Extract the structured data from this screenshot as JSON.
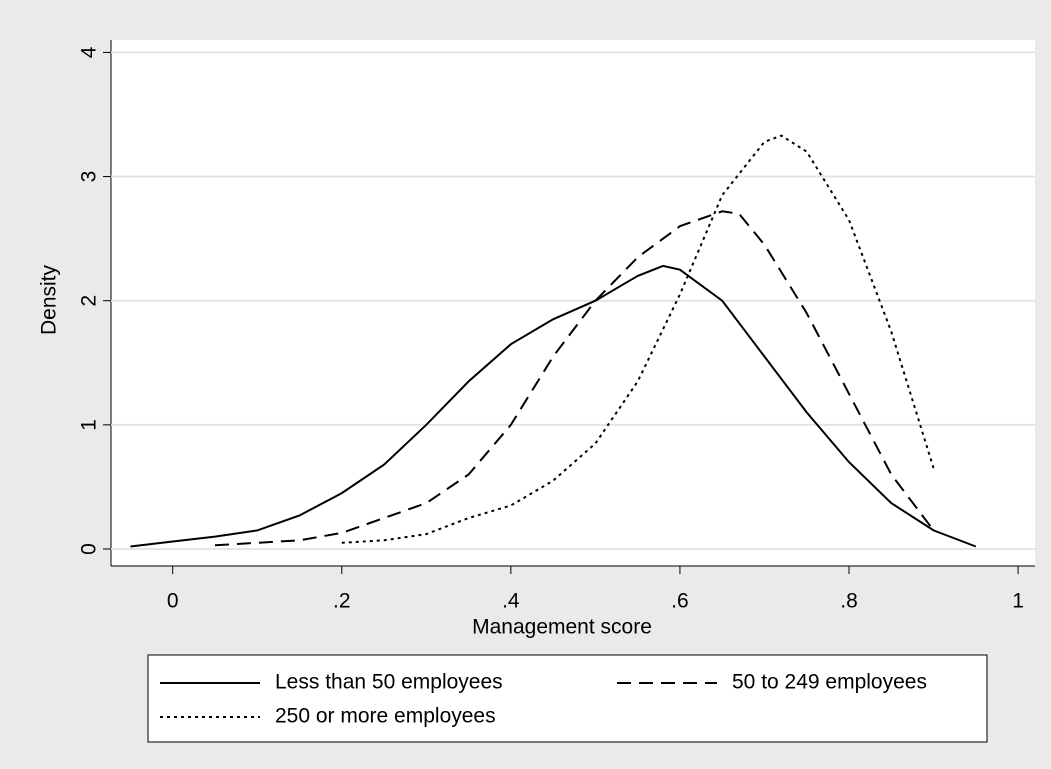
{
  "chart_data": {
    "type": "line",
    "xlabel": "Management score",
    "ylabel": "Density",
    "xlim": [
      -0.073,
      1.02
    ],
    "ylim": [
      -0.137,
      4.1
    ],
    "xticks": [
      0,
      {
        "value": 0.2,
        "label": ".2"
      },
      {
        "value": 0.4,
        "label": ".4"
      },
      {
        "value": 0.6,
        "label": ".6"
      },
      {
        "value": 0.8,
        "label": ".8"
      },
      1
    ],
    "yticks": [
      0,
      1,
      2,
      3,
      4
    ],
    "grid": true,
    "legend": "bottom",
    "series": [
      {
        "name": "Less than 50 employees",
        "color": "#000000",
        "dash": "solid",
        "x": [
          -0.05,
          0,
          0.05,
          0.1,
          0.15,
          0.2,
          0.25,
          0.3,
          0.35,
          0.4,
          0.45,
          0.5,
          0.55,
          0.58,
          0.6,
          0.65,
          0.7,
          0.75,
          0.8,
          0.85,
          0.9,
          0.95
        ],
        "values": [
          0.02,
          0.06,
          0.1,
          0.15,
          0.27,
          0.45,
          0.68,
          1.0,
          1.35,
          1.65,
          1.85,
          2.0,
          2.2,
          2.28,
          2.25,
          2.0,
          1.55,
          1.1,
          0.7,
          0.37,
          0.15,
          0.02
        ]
      },
      {
        "name": "50 to 249 employees",
        "color": "#000000",
        "dash": "dashed",
        "x": [
          0.05,
          0.1,
          0.15,
          0.2,
          0.25,
          0.3,
          0.35,
          0.4,
          0.45,
          0.5,
          0.55,
          0.6,
          0.65,
          0.67,
          0.7,
          0.75,
          0.8,
          0.85,
          0.9
        ],
        "values": [
          0.03,
          0.05,
          0.07,
          0.13,
          0.25,
          0.37,
          0.6,
          1.0,
          1.55,
          2.0,
          2.35,
          2.6,
          2.72,
          2.7,
          2.45,
          1.9,
          1.25,
          0.6,
          0.15
        ]
      },
      {
        "name": "250 or more employees",
        "color": "#000000",
        "dash": "dotted",
        "x": [
          0.2,
          0.25,
          0.3,
          0.35,
          0.4,
          0.45,
          0.5,
          0.55,
          0.6,
          0.65,
          0.7,
          0.72,
          0.75,
          0.8,
          0.85,
          0.9
        ],
        "values": [
          0.05,
          0.07,
          0.12,
          0.25,
          0.35,
          0.55,
          0.85,
          1.35,
          2.05,
          2.85,
          3.28,
          3.33,
          3.2,
          2.65,
          1.75,
          0.65
        ]
      }
    ]
  }
}
